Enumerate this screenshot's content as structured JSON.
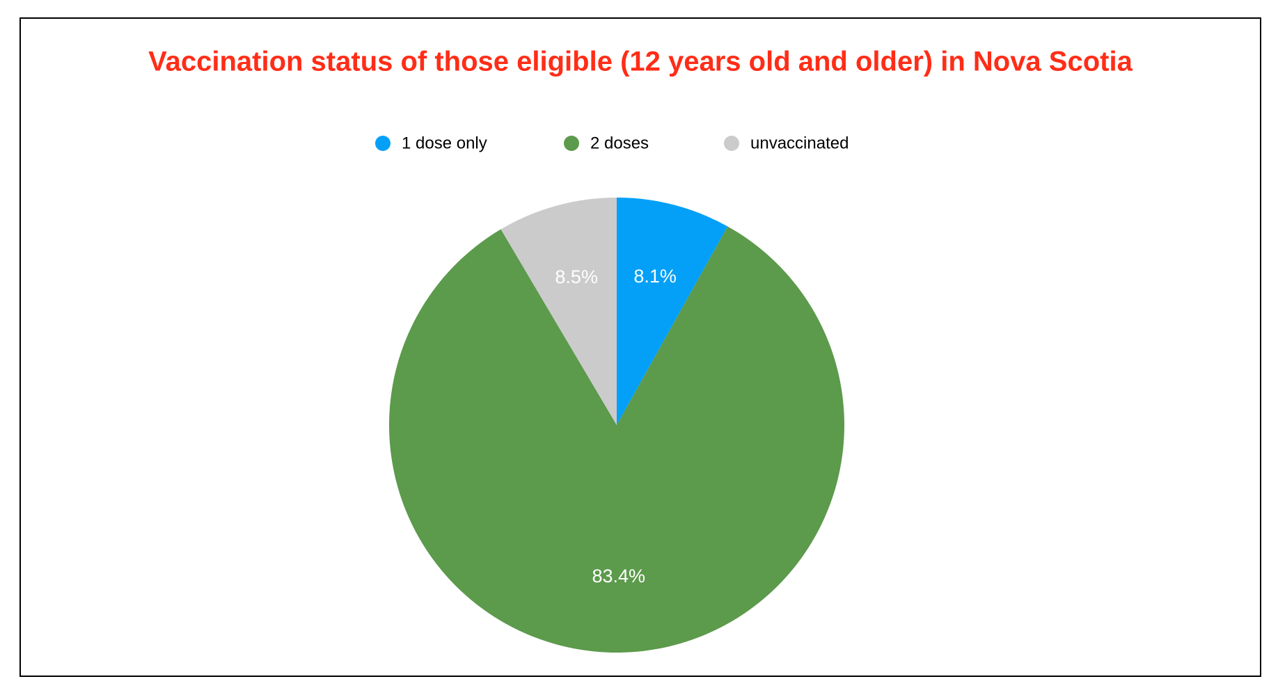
{
  "chart_data": {
    "type": "pie",
    "title": "Vaccination status of those eligible (12 years old and older) in Nova Scotia",
    "title_color": "#ff2d17",
    "categories": [
      "1 dose only",
      "2 doses",
      "unvaccinated"
    ],
    "values": [
      8.1,
      83.4,
      8.5
    ],
    "value_labels": [
      "8.1%",
      "83.4%",
      "8.5%"
    ],
    "colors": [
      "#04a0f8",
      "#5c9a4c",
      "#cbcbcb"
    ],
    "legend": "top"
  }
}
